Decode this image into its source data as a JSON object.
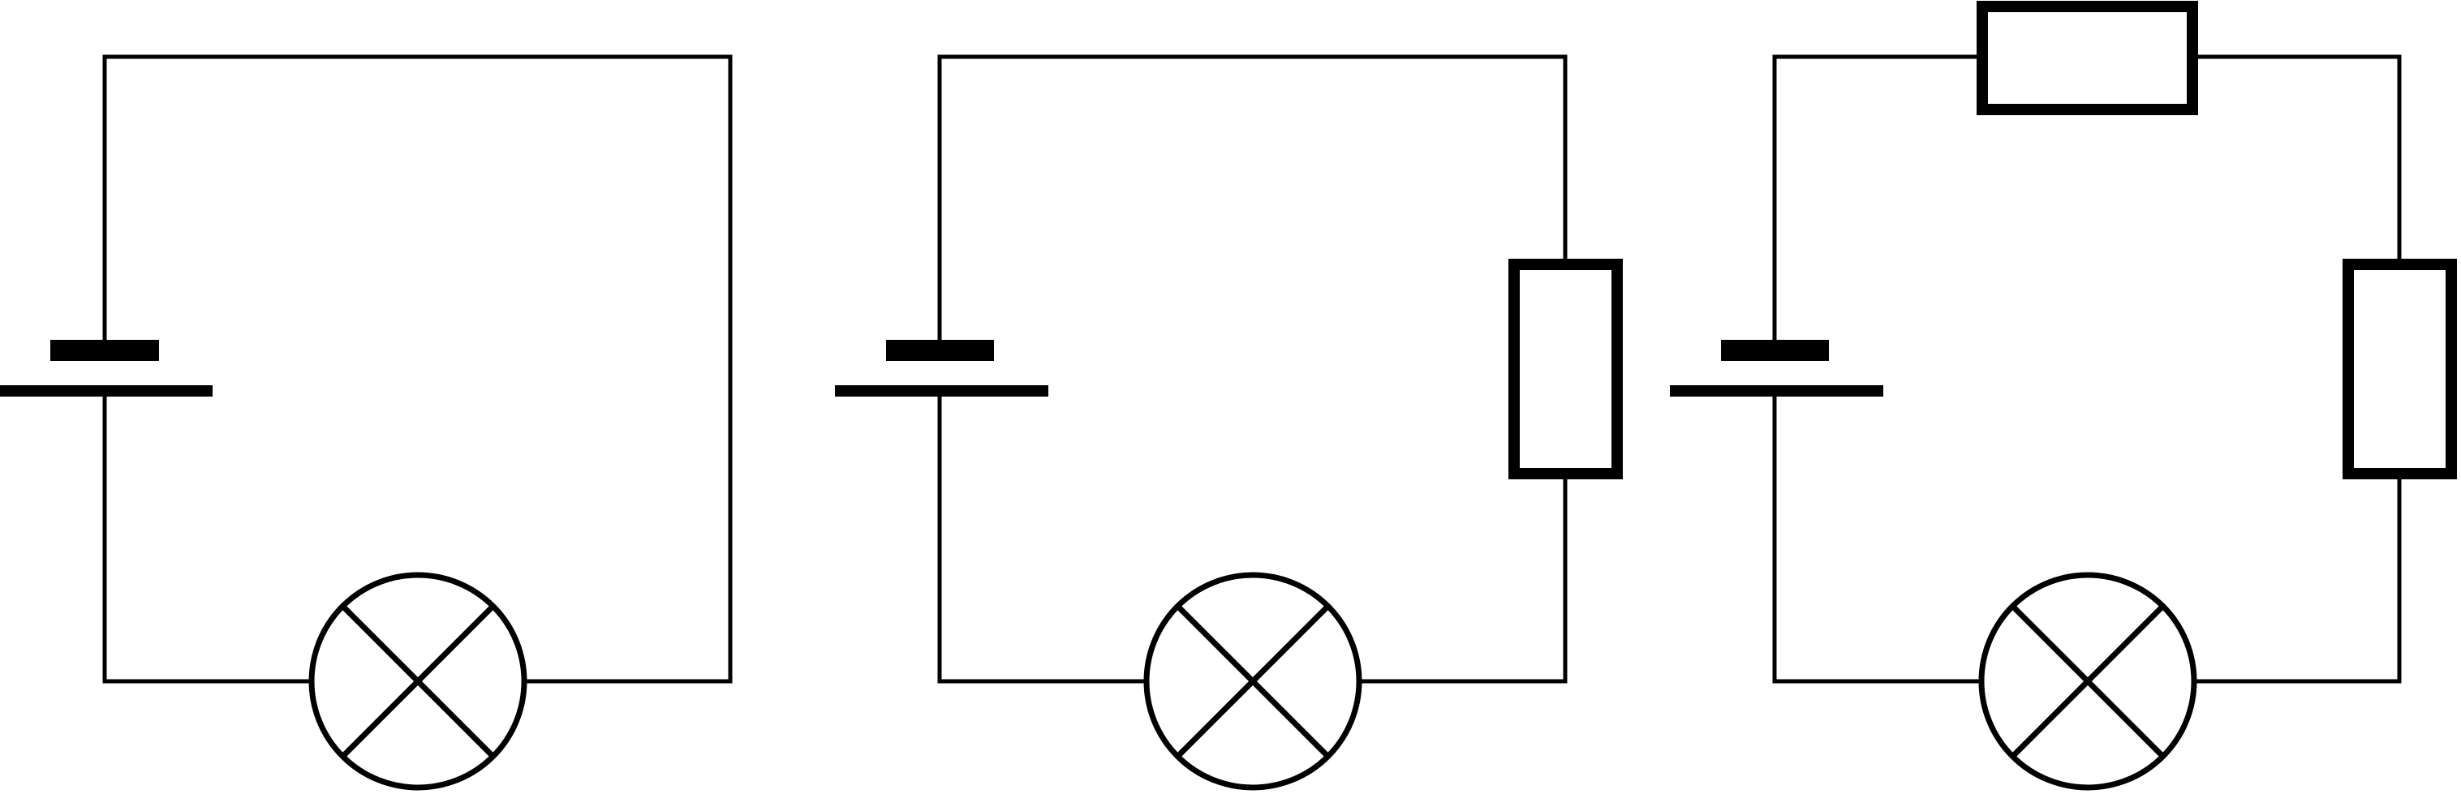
{
  "colors": {
    "line": "#000000",
    "background": "#ffffff"
  },
  "circuits": [
    {
      "id": "circuit-1",
      "components": [
        "cell",
        "lamp"
      ]
    },
    {
      "id": "circuit-2",
      "components": [
        "cell",
        "lamp",
        "resistor"
      ]
    },
    {
      "id": "circuit-3",
      "components": [
        "cell",
        "lamp",
        "resistor",
        "resistor"
      ]
    }
  ]
}
